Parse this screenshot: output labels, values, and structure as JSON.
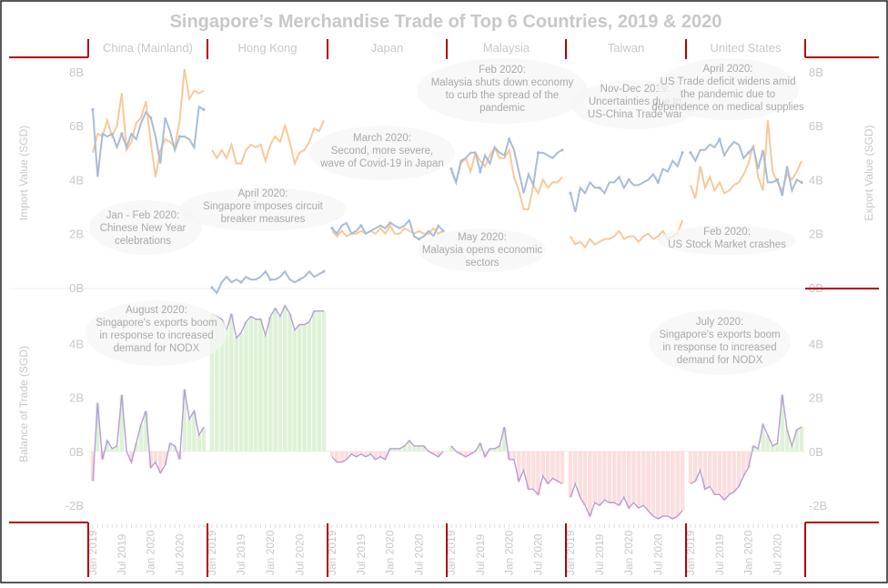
{
  "chart_data": {
    "type": "line",
    "title": "Singapore’s Merchandise Trade of Top 6 Countries, 2019 & 2020",
    "countries": [
      "China (Mainland)",
      "Hong Kong",
      "Japan",
      "Malaysia",
      "Taiwan",
      "United States"
    ],
    "x": [
      "Jan 2019",
      "Feb 2019",
      "Mar 2019",
      "Apr 2019",
      "May 2019",
      "Jun 2019",
      "Jul 2019",
      "Aug 2019",
      "Sep 2019",
      "Oct 2019",
      "Nov 2019",
      "Dec 2019",
      "Jan 2020",
      "Feb 2020",
      "Mar 2020",
      "Apr 2020",
      "May 2020",
      "Jun 2020",
      "Jul 2020",
      "Aug 2020",
      "Sep 2020",
      "Oct 2020",
      "Nov 2020",
      "Dec 2020"
    ],
    "x_tick_labels": [
      "Jan 2019",
      "Jul 2019",
      "Jan 2020",
      "Jul 2020"
    ],
    "top_panel": {
      "ylabel_left": "Import Value (SGD)",
      "ylabel_right": "Export Value (SGD)",
      "ylim": [
        0,
        8.5
      ],
      "y_ticks": [
        "0B",
        "2B",
        "4B",
        "6B",
        "8B"
      ],
      "y_tick_values": [
        0,
        2,
        4,
        6,
        8
      ],
      "imports": {
        "China (Mainland)": [
          6.6,
          4.1,
          5.7,
          5.6,
          5.7,
          5.2,
          5.7,
          5.2,
          5.7,
          5.5,
          6.1,
          6.5,
          6.3,
          5.6,
          4.6,
          6.3,
          5.8,
          5.1,
          5.6,
          5.6,
          5.5,
          5.2,
          6.7,
          6.6
        ],
        "Hong Kong": [
          0.0,
          -0.2,
          0.2,
          0.4,
          0.2,
          0.3,
          0.2,
          0.4,
          0.3,
          0.3,
          0.4,
          0.6,
          0.3,
          0.3,
          0.4,
          0.6,
          0.3,
          0.2,
          0.3,
          0.4,
          0.6,
          0.4,
          0.5,
          0.6
        ],
        "Japan": [
          2.2,
          2.0,
          2.3,
          2.4,
          2.0,
          2.1,
          2.3,
          2.0,
          2.1,
          2.2,
          2.3,
          2.2,
          2.4,
          2.3,
          2.2,
          2.3,
          2.5,
          1.9,
          1.8,
          1.9,
          2.1,
          1.9,
          2.3,
          2.1
        ],
        "Malaysia": [
          4.4,
          3.9,
          4.7,
          4.8,
          5.0,
          5.0,
          4.3,
          4.9,
          4.6,
          5.2,
          5.0,
          4.9,
          5.5,
          5.1,
          4.3,
          3.5,
          4.2,
          3.8,
          5.0,
          5.0,
          4.9,
          4.8,
          5.0,
          5.1
        ],
        "Taiwan": [
          3.5,
          2.8,
          3.7,
          3.5,
          3.9,
          3.7,
          3.7,
          3.5,
          3.9,
          3.9,
          4.1,
          3.7,
          4.0,
          3.8,
          3.8,
          3.9,
          4.0,
          4.2,
          3.9,
          4.4,
          4.3,
          4.7,
          4.5,
          5.0
        ],
        "United States": [
          5.0,
          4.7,
          5.1,
          5.1,
          5.3,
          5.2,
          5.5,
          4.9,
          5.2,
          5.4,
          5.3,
          4.8,
          5.0,
          5.2,
          4.4,
          5.1,
          3.9,
          3.9,
          4.0,
          3.4,
          4.5,
          3.6,
          4.0,
          3.9
        ]
      },
      "exports": {
        "China (Mainland)": [
          5.0,
          5.7,
          5.6,
          6.2,
          5.6,
          6.0,
          7.2,
          5.1,
          5.4,
          6.1,
          6.3,
          6.9,
          5.4,
          4.1,
          5.1,
          5.5,
          5.4,
          5.2,
          6.2,
          8.1,
          7.0,
          7.3,
          7.2,
          7.3
        ],
        "Hong Kong": [
          5.1,
          4.8,
          5.1,
          4.8,
          5.3,
          4.6,
          4.6,
          5.1,
          5.3,
          5.2,
          5.3,
          4.7,
          5.3,
          5.6,
          5.4,
          6.0,
          5.4,
          4.6,
          5.0,
          5.1,
          5.4,
          5.9,
          5.8,
          6.2
        ],
        "Japan": [
          2.1,
          1.9,
          2.1,
          1.9,
          2.0,
          2.0,
          2.1,
          2.0,
          2.1,
          2.0,
          2.2,
          2.0,
          2.3,
          2.0,
          2.0,
          2.2,
          2.1,
          2.0,
          2.1,
          2.0,
          2.0,
          2.2,
          2.0,
          2.1
        ],
        "Malaysia": [
          4.3,
          3.9,
          4.6,
          4.8,
          4.3,
          5.0,
          4.7,
          4.5,
          4.9,
          5.2,
          4.8,
          4.8,
          5.1,
          4.1,
          3.6,
          2.9,
          2.9,
          3.8,
          3.5,
          4.0,
          3.7,
          3.9,
          3.9,
          4.1
        ],
        "Taiwan": [
          1.9,
          1.6,
          1.7,
          1.5,
          1.8,
          1.6,
          1.7,
          1.8,
          1.8,
          1.9,
          2.1,
          1.8,
          1.9,
          1.9,
          1.7,
          1.9,
          2.0,
          1.8,
          1.9,
          2.1,
          1.8,
          1.9,
          2.0,
          2.5
        ],
        "United States": [
          3.8,
          3.3,
          4.5,
          3.7,
          4.1,
          3.6,
          3.9,
          3.5,
          3.6,
          3.8,
          3.9,
          4.2,
          4.6,
          5.3,
          4.1,
          3.6,
          6.2,
          4.3,
          3.9,
          3.6,
          4.2,
          4.0,
          4.3,
          4.7
        ]
      }
    },
    "bottom_panel": {
      "ylabel": "Balance of Trade (SGD)",
      "ylim": [
        -2.6,
        6.0
      ],
      "y_ticks": [
        "-2B",
        "0B",
        "2B",
        "4B"
      ],
      "y_tick_values": [
        -2,
        0,
        2,
        4
      ],
      "balance": {
        "China (Mainland)": [
          -1.1,
          1.8,
          -0.3,
          0.4,
          0.1,
          0.2,
          2.1,
          0.0,
          -0.4,
          0.3,
          1.0,
          1.5,
          -0.6,
          -0.4,
          -0.8,
          -0.5,
          0.3,
          0.2,
          -0.3,
          2.3,
          1.2,
          1.5,
          0.6,
          0.9
        ],
        "Hong Kong": [
          5.1,
          5.0,
          4.9,
          4.5,
          5.1,
          4.2,
          4.4,
          4.8,
          5.0,
          4.9,
          4.9,
          4.3,
          5.0,
          5.3,
          5.0,
          5.4,
          5.1,
          4.5,
          4.7,
          4.7,
          4.8,
          5.2,
          5.2,
          5.2
        ],
        "Japan": [
          -0.2,
          -0.4,
          -0.4,
          -0.3,
          -0.1,
          -0.2,
          -0.1,
          -0.2,
          -0.1,
          -0.3,
          -0.2,
          -0.3,
          0.1,
          0.1,
          0.1,
          0.2,
          0.4,
          0.2,
          0.2,
          0.2,
          0.0,
          -0.1,
          -0.2,
          0.0
        ],
        "Malaysia": [
          0.2,
          0.0,
          -0.1,
          -0.2,
          -0.1,
          0.0,
          0.3,
          -0.2,
          0.1,
          0.1,
          0.2,
          0.9,
          -0.3,
          -0.3,
          -1.1,
          -0.7,
          -1.4,
          -1.4,
          -1.6,
          -0.9,
          -1.2,
          -1.0,
          -1.1,
          -1.2
        ],
        "Taiwan": [
          -1.7,
          -1.2,
          -1.7,
          -2.0,
          -2.4,
          -1.9,
          -2.0,
          -1.8,
          -1.9,
          -1.9,
          -2.0,
          -1.7,
          -2.1,
          -1.9,
          -2.1,
          -2.0,
          -2.2,
          -2.4,
          -2.5,
          -2.4,
          -2.4,
          -2.5,
          -2.4,
          -2.2
        ],
        "United States": [
          -1.2,
          -1.1,
          -0.7,
          -1.4,
          -1.3,
          -1.6,
          -1.6,
          -1.8,
          -1.6,
          -1.5,
          -1.3,
          -0.9,
          -0.6,
          0.2,
          0.1,
          1.0,
          0.6,
          0.2,
          0.3,
          2.1,
          0.8,
          0.2,
          0.8,
          0.9
        ]
      }
    },
    "annotations": [
      {
        "text": "Jan - Feb 2020:\nChinese New Year\ncelebrations"
      },
      {
        "text": "April 2020:\nSingapore imposes circuit\nbreaker measures"
      },
      {
        "text": "March 2020:\nSecond, more severe,\nwave of Covid-19 in Japan"
      },
      {
        "text": "Feb 2020:\nMalaysia shuts down economy\nto curb the spread of the\npandemic"
      },
      {
        "text": "May 2020:\nMalaysia opens economic\nsectors"
      },
      {
        "text": "Nov-Dec 2019:\nUncertainties due to\nUS-China Trade war"
      },
      {
        "text": "April 2020:\nUS Trade deficit widens amid\nthe pandemic due to\ndependence on  medical supplies"
      },
      {
        "text": "Feb 2020:\nUS Stock Market crashes"
      },
      {
        "text": "August 2020:\nSingapore's exports boom\nin response to increased\ndemand for NODX"
      },
      {
        "text": "July 2020:\nSingapore's exports boom\nin response to increased\ndemand for NODX"
      }
    ],
    "colors": {
      "import_line": "#a9bcd6",
      "export_line": "#f7c99a",
      "balance_line": "#b59ed1",
      "positive_bar": "#dff2d8",
      "negative_bar": "#fbdede",
      "divider": "#b40000",
      "text": "#c8c8c8"
    },
    "grid": false,
    "legend": "none"
  }
}
